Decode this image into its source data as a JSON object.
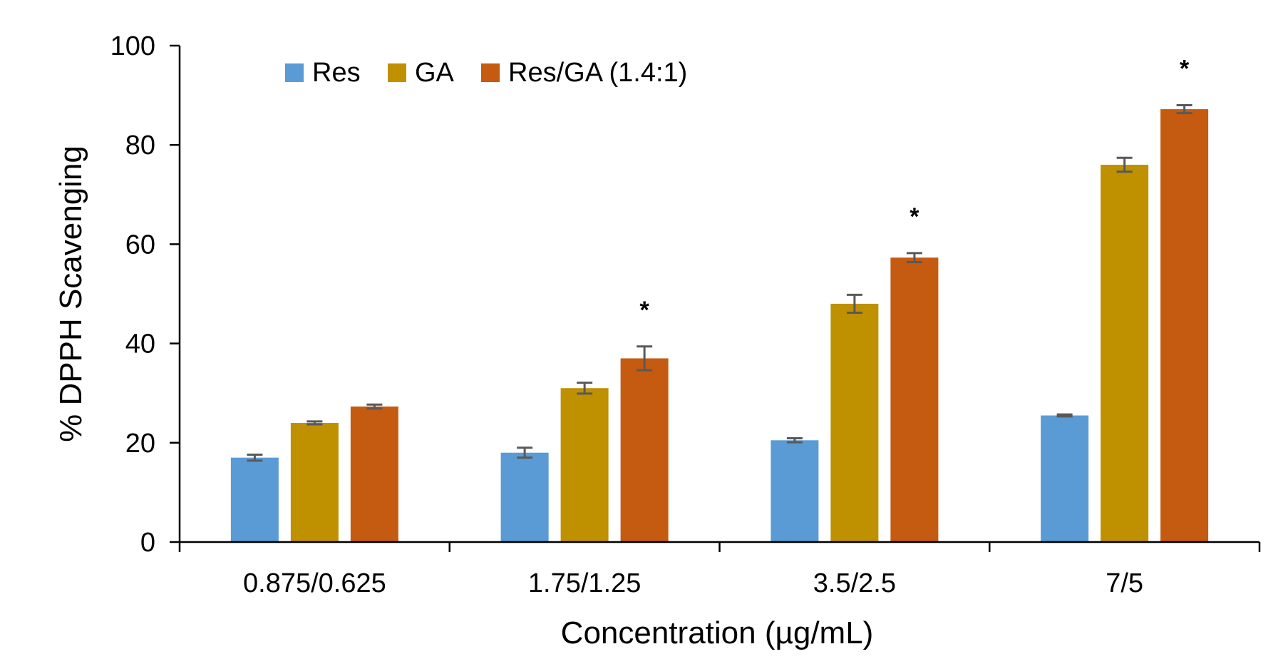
{
  "chart_data": {
    "type": "bar",
    "title": "",
    "xlabel": "Concentration (µg/mL)",
    "ylabel": "% DPPH Scavenging",
    "categories": [
      "0.875/0.625",
      "1.75/1.25",
      "3.5/2.5",
      "7/5"
    ],
    "ylim": [
      0,
      100
    ],
    "yticks": [
      0,
      20,
      40,
      60,
      80,
      100
    ],
    "grid": false,
    "legend_position": "top-left",
    "series": [
      {
        "name": "Res",
        "color": "#5B9BD5",
        "values": [
          17,
          18,
          20.5,
          25.5
        ],
        "errors": [
          0.6,
          1.0,
          0.4,
          0.2
        ]
      },
      {
        "name": "GA",
        "color": "#BF9000",
        "values": [
          24,
          31,
          48,
          76
        ],
        "errors": [
          0.3,
          1.1,
          1.8,
          1.4
        ]
      },
      {
        "name": "Res/GA (1.4:1)",
        "color": "#C55A11",
        "values": [
          27.3,
          37,
          57.3,
          87.2
        ],
        "errors": [
          0.4,
          2.4,
          0.9,
          0.8
        ]
      }
    ],
    "annotations": [
      {
        "text": "*",
        "category": "1.75/1.25",
        "series": "Res/GA (1.4:1)"
      },
      {
        "text": "*",
        "category": "3.5/2.5",
        "series": "Res/GA (1.4:1)"
      },
      {
        "text": "*",
        "category": "7/5",
        "series": "Res/GA (1.4:1)"
      }
    ]
  }
}
